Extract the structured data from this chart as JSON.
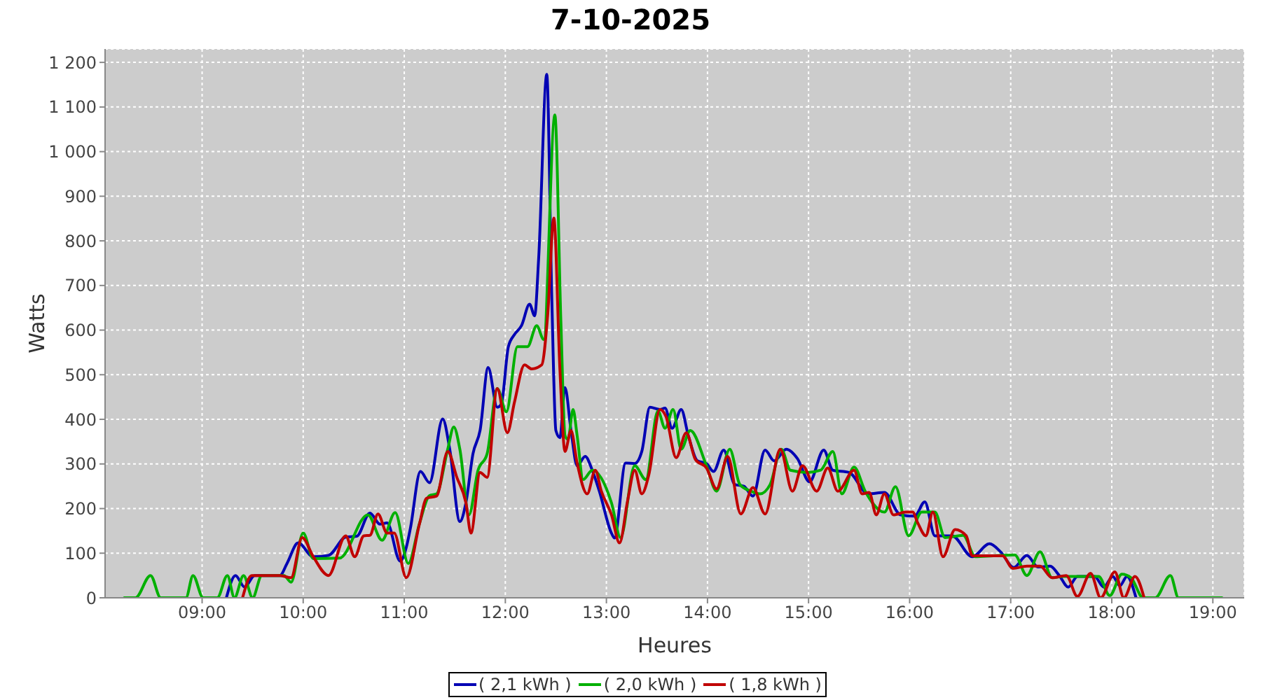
{
  "chart_data": {
    "type": "line",
    "title": "7-10-2025",
    "xlabel": "Heures",
    "ylabel": "Watts",
    "xlim": [
      8.04,
      19.31
    ],
    "xticks": [
      {
        "value": 9,
        "label": "09:00"
      },
      {
        "value": 10,
        "label": "10:00"
      },
      {
        "value": 11,
        "label": "11:00"
      },
      {
        "value": 12,
        "label": "12:00"
      },
      {
        "value": 13,
        "label": "13:00"
      },
      {
        "value": 14,
        "label": "14:00"
      },
      {
        "value": 15,
        "label": "15:00"
      },
      {
        "value": 16,
        "label": "16:00"
      },
      {
        "value": 17,
        "label": "17:00"
      },
      {
        "value": 18,
        "label": "18:00"
      },
      {
        "value": 19,
        "label": "19:00"
      }
    ],
    "ylim": [
      0,
      1230
    ],
    "yticks": [
      0,
      100,
      200,
      300,
      400,
      500,
      600,
      700,
      800,
      900,
      {
        "value": 1000,
        "label": "1 000"
      },
      {
        "value": 1100,
        "label": "1 100"
      },
      {
        "value": 1200,
        "label": "1 200"
      }
    ],
    "grid": true,
    "legend": "bottom",
    "line_style": "solid",
    "series": [
      {
        "name": "( 2,1 kWh )",
        "color": "#0000b4",
        "x": [
          9.24,
          9.33,
          9.42,
          9.52,
          9.77,
          9.84,
          9.95,
          10.1,
          10.25,
          10.42,
          10.53,
          10.66,
          10.76,
          10.83,
          10.96,
          11.02,
          11.06,
          11.16,
          11.25,
          11.38,
          11.45,
          11.55,
          11.61,
          11.68,
          11.75,
          11.83,
          11.92,
          11.96,
          12.03,
          12.09,
          12.16,
          12.24,
          12.29,
          12.33,
          12.41,
          12.46,
          12.5,
          12.54,
          12.59,
          12.65,
          12.71,
          12.79,
          12.86,
          12.93,
          13.05,
          13.08,
          13.19,
          13.28,
          13.35,
          13.43,
          13.53,
          13.58,
          13.65,
          13.74,
          13.81,
          13.9,
          13.99,
          14.06,
          14.16,
          14.27,
          14.36,
          14.45,
          14.57,
          14.66,
          14.78,
          14.89,
          15.01,
          15.15,
          15.24,
          15.4,
          15.59,
          15.75,
          15.91,
          16.05,
          16.15,
          16.25,
          16.42,
          16.62,
          16.79,
          16.9,
          17.03,
          17.16,
          17.27,
          17.39,
          17.48,
          17.57,
          17.66,
          17.83,
          17.92,
          18.01,
          18.08,
          18.15,
          18.24
        ],
        "values": [
          0,
          50,
          24,
          50,
          50,
          77,
          123,
          92,
          95,
          136,
          138,
          190,
          165,
          168,
          82,
          113,
          155,
          283,
          258,
          401,
          333,
          171,
          213,
          323,
          375,
          516,
          427,
          434,
          563,
          590,
          610,
          658,
          632,
          762,
          1173,
          668,
          375,
          359,
          471,
          375,
          296,
          317,
          286,
          239,
          145,
          134,
          302,
          301,
          328,
          427,
          422,
          425,
          380,
          422,
          364,
          307,
          301,
          283,
          331,
          254,
          250,
          228,
          331,
          307,
          333,
          312,
          260,
          331,
          286,
          281,
          233,
          236,
          186,
          183,
          215,
          139,
          139,
          92,
          121,
          103,
          68,
          95,
          69,
          71,
          50,
          24,
          48,
          48,
          24,
          48,
          27,
          48,
          0
        ]
      },
      {
        "name": "( 2,0 kWh )",
        "color": "#00b000",
        "x": [
          8.23,
          8.34,
          8.49,
          8.59,
          8.84,
          8.91,
          9.01,
          9.15,
          9.25,
          9.32,
          9.41,
          9.5,
          9.59,
          9.81,
          9.88,
          10.0,
          10.1,
          10.36,
          10.64,
          10.78,
          10.91,
          11.04,
          11.15,
          11.25,
          11.32,
          11.43,
          11.49,
          11.55,
          11.64,
          11.73,
          11.82,
          11.92,
          12.01,
          12.12,
          12.22,
          12.31,
          12.38,
          12.49,
          12.55,
          12.59,
          12.62,
          12.67,
          12.71,
          12.77,
          12.86,
          13.05,
          13.14,
          13.28,
          13.39,
          13.51,
          13.58,
          13.66,
          13.74,
          13.83,
          13.99,
          14.09,
          14.22,
          14.32,
          14.43,
          14.52,
          14.62,
          14.73,
          14.82,
          14.99,
          15.12,
          15.24,
          15.33,
          15.45,
          15.56,
          15.75,
          15.86,
          15.99,
          16.12,
          16.25,
          16.35,
          16.53,
          16.65,
          16.83,
          17.04,
          17.16,
          17.29,
          17.41,
          17.52,
          17.66,
          17.87,
          17.98,
          18.1,
          18.19,
          18.31,
          18.43,
          18.58,
          18.66,
          19.09
        ],
        "values": [
          0,
          0,
          50,
          0,
          0,
          50,
          0,
          0,
          50,
          0,
          50,
          0,
          50,
          50,
          35,
          145,
          88,
          89,
          186,
          129,
          191,
          77,
          166,
          229,
          233,
          333,
          383,
          333,
          186,
          286,
          323,
          469,
          417,
          563,
          563,
          610,
          579,
          1082,
          616,
          364,
          355,
          422,
          364,
          265,
          286,
          213,
          135,
          296,
          265,
          419,
          380,
          422,
          333,
          375,
          296,
          239,
          333,
          254,
          239,
          233,
          254,
          333,
          286,
          281,
          286,
          328,
          233,
          293,
          239,
          192,
          249,
          139,
          192,
          192,
          135,
          140,
          92,
          94,
          96,
          50,
          103,
          45,
          48,
          48,
          48,
          5,
          53,
          45,
          0,
          0,
          50,
          0,
          0
        ]
      },
      {
        "name": "( 1,8 kWh )",
        "color": "#c00000",
        "x": [
          9.4,
          9.49,
          9.77,
          9.88,
          9.99,
          10.1,
          10.25,
          10.42,
          10.51,
          10.6,
          10.66,
          10.74,
          10.83,
          10.9,
          11.02,
          11.15,
          11.22,
          11.32,
          11.43,
          11.52,
          11.61,
          11.66,
          11.75,
          11.82,
          11.92,
          12.02,
          12.09,
          12.19,
          12.26,
          12.36,
          12.42,
          12.48,
          12.54,
          12.59,
          12.65,
          12.71,
          12.81,
          12.89,
          12.95,
          13.05,
          13.13,
          13.21,
          13.28,
          13.35,
          13.42,
          13.53,
          13.59,
          13.69,
          13.79,
          13.88,
          13.99,
          14.09,
          14.2,
          14.33,
          14.45,
          14.57,
          14.72,
          14.84,
          14.94,
          15.08,
          15.19,
          15.29,
          15.45,
          15.53,
          15.6,
          15.67,
          15.75,
          15.84,
          15.96,
          16.03,
          16.08,
          16.16,
          16.23,
          16.33,
          16.45,
          16.56,
          16.62,
          16.92,
          17.02,
          17.16,
          17.29,
          17.41,
          17.55,
          17.66,
          17.79,
          17.89,
          18.03,
          18.12,
          18.23,
          18.32
        ],
        "values": [
          0,
          50,
          50,
          45,
          135,
          92,
          50,
          139,
          92,
          139,
          140,
          188,
          145,
          145,
          45,
          165,
          223,
          228,
          328,
          270,
          213,
          145,
          281,
          270,
          469,
          370,
          438,
          522,
          513,
          522,
          637,
          851,
          511,
          328,
          375,
          302,
          233,
          286,
          239,
          186,
          123,
          218,
          286,
          233,
          276,
          422,
          406,
          314,
          370,
          310,
          291,
          244,
          317,
          188,
          247,
          188,
          333,
          239,
          296,
          239,
          291,
          239,
          286,
          233,
          236,
          186,
          233,
          186,
          192,
          192,
          168,
          139,
          192,
          92,
          153,
          139,
          94,
          94,
          66,
          71,
          71,
          45,
          50,
          3,
          55,
          0,
          58,
          0,
          48,
          0
        ]
      }
    ]
  }
}
